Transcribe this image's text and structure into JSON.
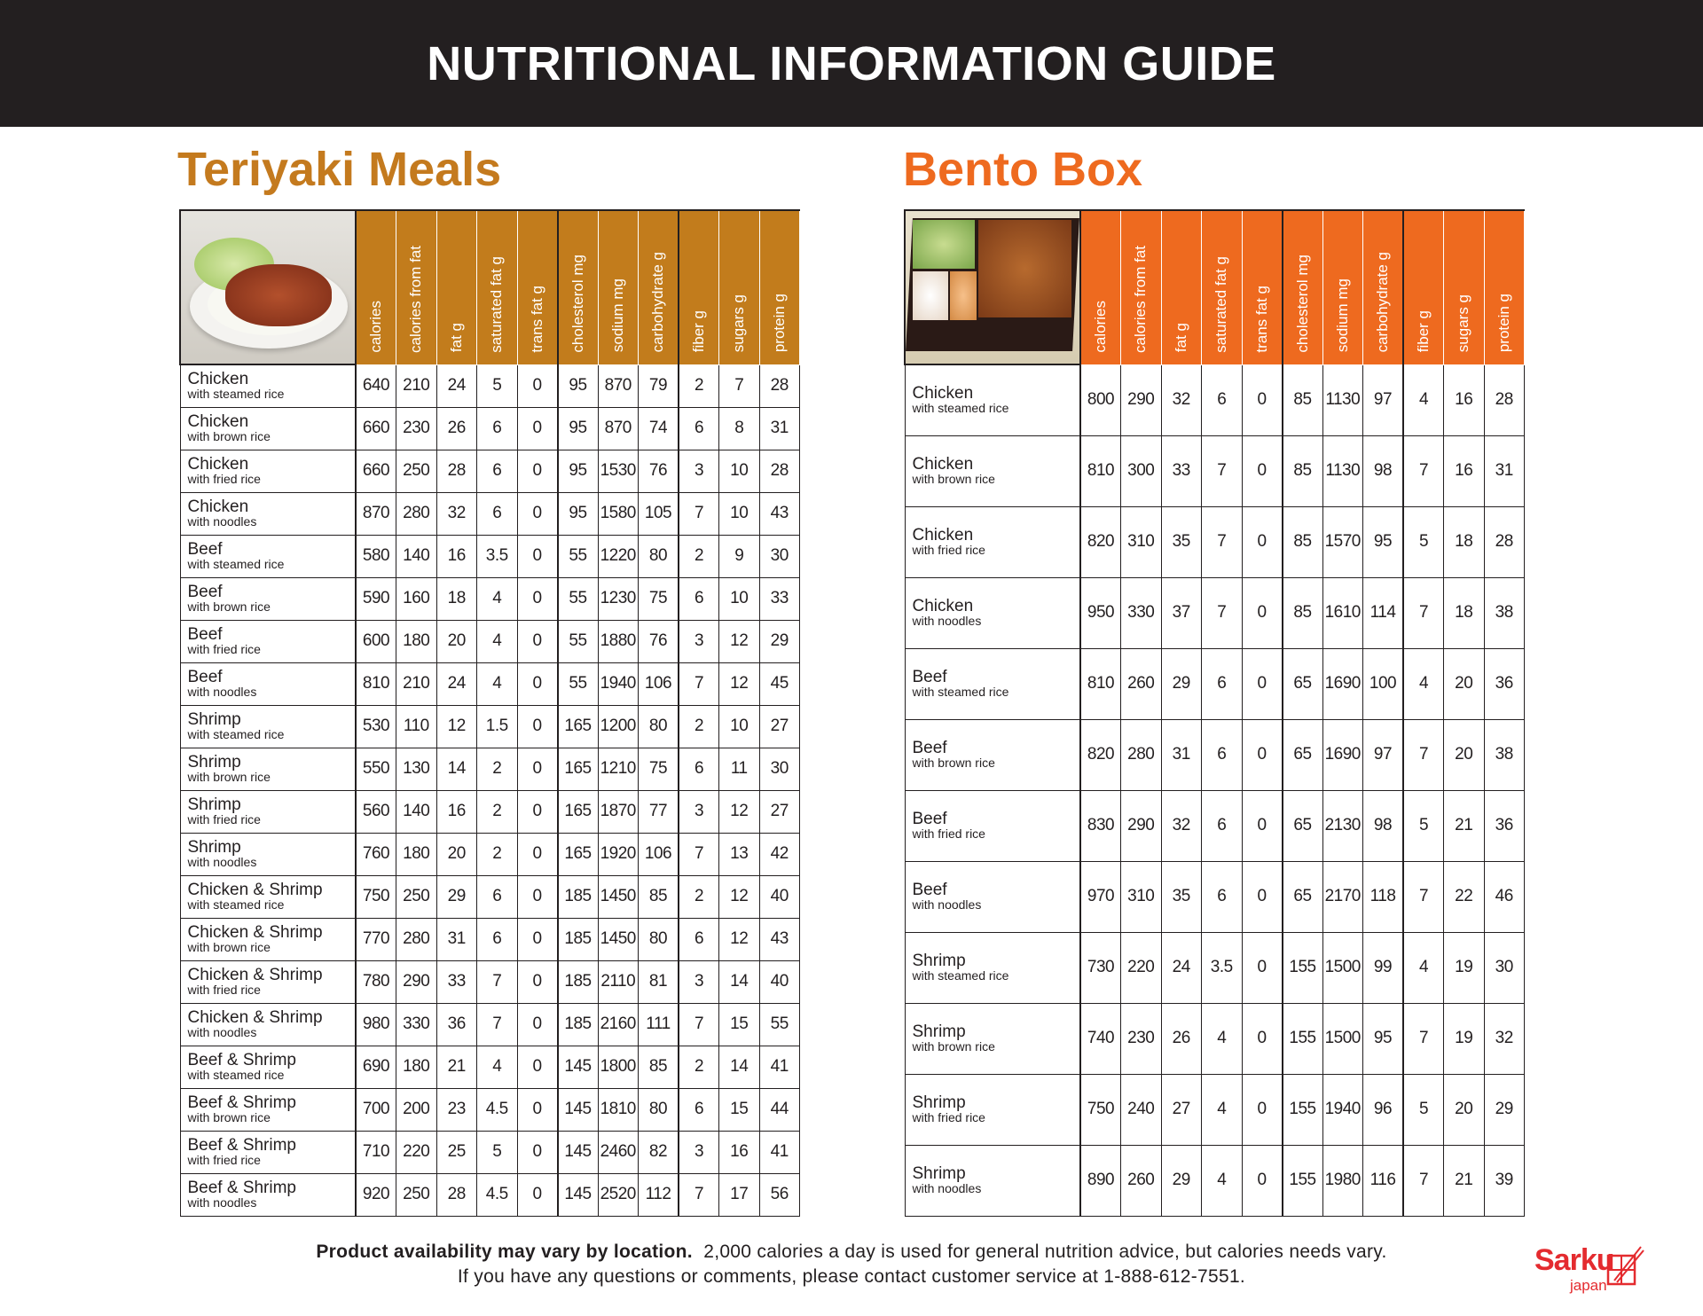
{
  "header": {
    "title": "NUTRITIONAL INFORMATION GUIDE"
  },
  "colors": {
    "teriyaki_accent": "#c27c1c",
    "bento_accent": "#ee6a1f",
    "header_bg": "#231f20",
    "logo_red": "#e42b2f"
  },
  "columns": [
    "calories",
    "calories from fat",
    "fat  g",
    "saturated fat  g",
    "trans fat  g",
    "cholesterol  mg",
    "sodium  mg",
    "carbohydrate  g",
    "fiber  g",
    "sugars  g",
    "protein  g"
  ],
  "teriyaki": {
    "title": "Teriyaki Meals",
    "photo": "teriyaki-plate-photo",
    "rows": [
      {
        "item": "Chicken",
        "side": "with steamed rice",
        "values": [
          "640",
          "210",
          "24",
          "5",
          "0",
          "95",
          "870",
          "79",
          "2",
          "7",
          "28"
        ]
      },
      {
        "item": "Chicken",
        "side": "with brown rice",
        "values": [
          "660",
          "230",
          "26",
          "6",
          "0",
          "95",
          "870",
          "74",
          "6",
          "8",
          "31"
        ]
      },
      {
        "item": "Chicken",
        "side": "with fried rice",
        "values": [
          "660",
          "250",
          "28",
          "6",
          "0",
          "95",
          "1530",
          "76",
          "3",
          "10",
          "28"
        ]
      },
      {
        "item": "Chicken",
        "side": "with noodles",
        "values": [
          "870",
          "280",
          "32",
          "6",
          "0",
          "95",
          "1580",
          "105",
          "7",
          "10",
          "43"
        ]
      },
      {
        "item": "Beef",
        "side": "with steamed rice",
        "values": [
          "580",
          "140",
          "16",
          "3.5",
          "0",
          "55",
          "1220",
          "80",
          "2",
          "9",
          "30"
        ]
      },
      {
        "item": "Beef",
        "side": "with brown rice",
        "values": [
          "590",
          "160",
          "18",
          "4",
          "0",
          "55",
          "1230",
          "75",
          "6",
          "10",
          "33"
        ]
      },
      {
        "item": "Beef",
        "side": "with fried rice",
        "values": [
          "600",
          "180",
          "20",
          "4",
          "0",
          "55",
          "1880",
          "76",
          "3",
          "12",
          "29"
        ]
      },
      {
        "item": "Beef",
        "side": "with noodles",
        "values": [
          "810",
          "210",
          "24",
          "4",
          "0",
          "55",
          "1940",
          "106",
          "7",
          "12",
          "45"
        ]
      },
      {
        "item": "Shrimp",
        "side": "with steamed rice",
        "values": [
          "530",
          "110",
          "12",
          "1.5",
          "0",
          "165",
          "1200",
          "80",
          "2",
          "10",
          "27"
        ]
      },
      {
        "item": "Shrimp",
        "side": "with brown rice",
        "values": [
          "550",
          "130",
          "14",
          "2",
          "0",
          "165",
          "1210",
          "75",
          "6",
          "11",
          "30"
        ]
      },
      {
        "item": "Shrimp",
        "side": "with fried rice",
        "values": [
          "560",
          "140",
          "16",
          "2",
          "0",
          "165",
          "1870",
          "77",
          "3",
          "12",
          "27"
        ]
      },
      {
        "item": "Shrimp",
        "side": "with noodles",
        "values": [
          "760",
          "180",
          "20",
          "2",
          "0",
          "165",
          "1920",
          "106",
          "7",
          "13",
          "42"
        ]
      },
      {
        "item": "Chicken & Shrimp",
        "side": "with steamed rice",
        "values": [
          "750",
          "250",
          "29",
          "6",
          "0",
          "185",
          "1450",
          "85",
          "2",
          "12",
          "40"
        ]
      },
      {
        "item": "Chicken & Shrimp",
        "side": "with brown rice",
        "values": [
          "770",
          "280",
          "31",
          "6",
          "0",
          "185",
          "1450",
          "80",
          "6",
          "12",
          "43"
        ]
      },
      {
        "item": "Chicken & Shrimp",
        "side": "with fried rice",
        "values": [
          "780",
          "290",
          "33",
          "7",
          "0",
          "185",
          "2110",
          "81",
          "3",
          "14",
          "40"
        ]
      },
      {
        "item": "Chicken & Shrimp",
        "side": "with noodles",
        "values": [
          "980",
          "330",
          "36",
          "7",
          "0",
          "185",
          "2160",
          "111",
          "7",
          "15",
          "55"
        ]
      },
      {
        "item": "Beef & Shrimp",
        "side": "with steamed rice",
        "values": [
          "690",
          "180",
          "21",
          "4",
          "0",
          "145",
          "1800",
          "85",
          "2",
          "14",
          "41"
        ]
      },
      {
        "item": "Beef & Shrimp",
        "side": "with brown rice",
        "values": [
          "700",
          "200",
          "23",
          "4.5",
          "0",
          "145",
          "1810",
          "80",
          "6",
          "15",
          "44"
        ]
      },
      {
        "item": "Beef & Shrimp",
        "side": "with fried rice",
        "values": [
          "710",
          "220",
          "25",
          "5",
          "0",
          "145",
          "2460",
          "82",
          "3",
          "16",
          "41"
        ]
      },
      {
        "item": "Beef & Shrimp",
        "side": "with noodles",
        "values": [
          "920",
          "250",
          "28",
          "4.5",
          "0",
          "145",
          "2520",
          "112",
          "7",
          "17",
          "56"
        ]
      }
    ]
  },
  "bento": {
    "title": "Bento Box",
    "photo": "bento-box-photo",
    "rows": [
      {
        "item": "Chicken",
        "side": "with steamed rice",
        "values": [
          "800",
          "290",
          "32",
          "6",
          "0",
          "85",
          "1130",
          "97",
          "4",
          "16",
          "28"
        ]
      },
      {
        "item": "Chicken",
        "side": "with brown rice",
        "values": [
          "810",
          "300",
          "33",
          "7",
          "0",
          "85",
          "1130",
          "98",
          "7",
          "16",
          "31"
        ]
      },
      {
        "item": "Chicken",
        "side": "with fried rice",
        "values": [
          "820",
          "310",
          "35",
          "7",
          "0",
          "85",
          "1570",
          "95",
          "5",
          "18",
          "28"
        ]
      },
      {
        "item": "Chicken",
        "side": "with noodles",
        "values": [
          "950",
          "330",
          "37",
          "7",
          "0",
          "85",
          "1610",
          "114",
          "7",
          "18",
          "38"
        ]
      },
      {
        "item": "Beef",
        "side": "with steamed rice",
        "values": [
          "810",
          "260",
          "29",
          "6",
          "0",
          "65",
          "1690",
          "100",
          "4",
          "20",
          "36"
        ]
      },
      {
        "item": "Beef",
        "side": "with brown rice",
        "values": [
          "820",
          "280",
          "31",
          "6",
          "0",
          "65",
          "1690",
          "97",
          "7",
          "20",
          "38"
        ]
      },
      {
        "item": "Beef",
        "side": "with fried rice",
        "values": [
          "830",
          "290",
          "32",
          "6",
          "0",
          "65",
          "2130",
          "98",
          "5",
          "21",
          "36"
        ]
      },
      {
        "item": "Beef",
        "side": "with noodles",
        "values": [
          "970",
          "310",
          "35",
          "6",
          "0",
          "65",
          "2170",
          "118",
          "7",
          "22",
          "46"
        ]
      },
      {
        "item": "Shrimp",
        "side": "with steamed rice",
        "values": [
          "730",
          "220",
          "24",
          "3.5",
          "0",
          "155",
          "1500",
          "99",
          "4",
          "19",
          "30"
        ]
      },
      {
        "item": "Shrimp",
        "side": "with brown rice",
        "values": [
          "740",
          "230",
          "26",
          "4",
          "0",
          "155",
          "1500",
          "95",
          "7",
          "19",
          "32"
        ]
      },
      {
        "item": "Shrimp",
        "side": "with fried rice",
        "values": [
          "750",
          "240",
          "27",
          "4",
          "0",
          "155",
          "1940",
          "96",
          "5",
          "20",
          "29"
        ]
      },
      {
        "item": "Shrimp",
        "side": "with noodles",
        "values": [
          "890",
          "260",
          "29",
          "4",
          "0",
          "155",
          "1980",
          "116",
          "7",
          "21",
          "39"
        ]
      }
    ]
  },
  "footer": {
    "bold": "Product availability may vary by location.",
    "line1": "2,000 calories a day is used for general nutrition advice, but calories needs vary.",
    "line2": "If you have any questions or comments, please contact customer service at 1-888-612-7551."
  },
  "logo": {
    "brand": "Sarku",
    "sub": "japan"
  }
}
